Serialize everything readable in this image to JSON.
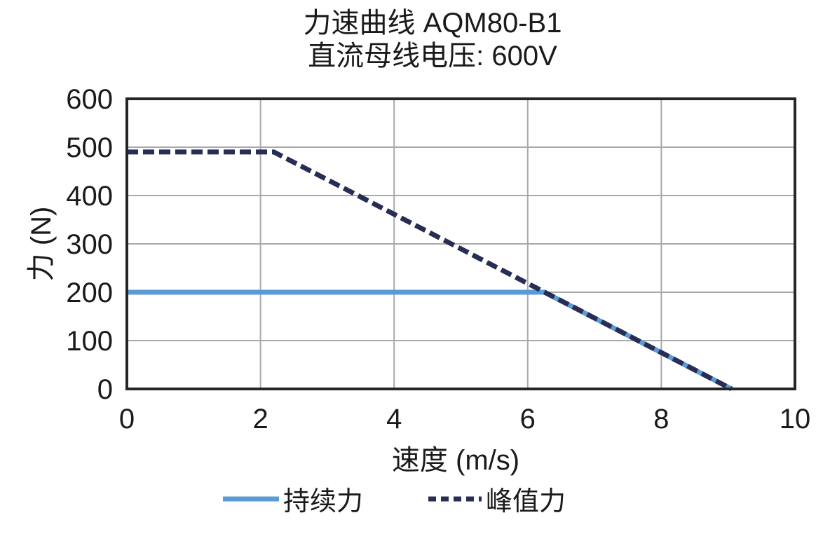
{
  "chart_data": {
    "type": "line",
    "title": "力速曲线 AQM80-B1",
    "subtitle": "直流母线电压: 600V",
    "xlabel": "速度 (m/s)",
    "ylabel": "力 (N)",
    "xlim": [
      0,
      10
    ],
    "ylim": [
      0,
      600
    ],
    "xticks": [
      0,
      2,
      4,
      6,
      8,
      10
    ],
    "yticks": [
      0,
      100,
      200,
      300,
      400,
      500,
      600
    ],
    "grid": true,
    "legend_position": "bottom",
    "text_color": "#1A1A1A",
    "grid_color": "#A9A9A9",
    "border_color": "#262626",
    "series": [
      {
        "name": "持续力",
        "style": "solid",
        "color": "#5B9BD5",
        "points": [
          [
            0,
            200
          ],
          [
            6.25,
            200
          ],
          [
            9.05,
            0
          ]
        ]
      },
      {
        "name": "峰值力",
        "style": "dashed",
        "color": "#282D55",
        "points": [
          [
            0,
            490
          ],
          [
            2.2,
            490
          ],
          [
            9.05,
            0
          ]
        ]
      }
    ]
  }
}
